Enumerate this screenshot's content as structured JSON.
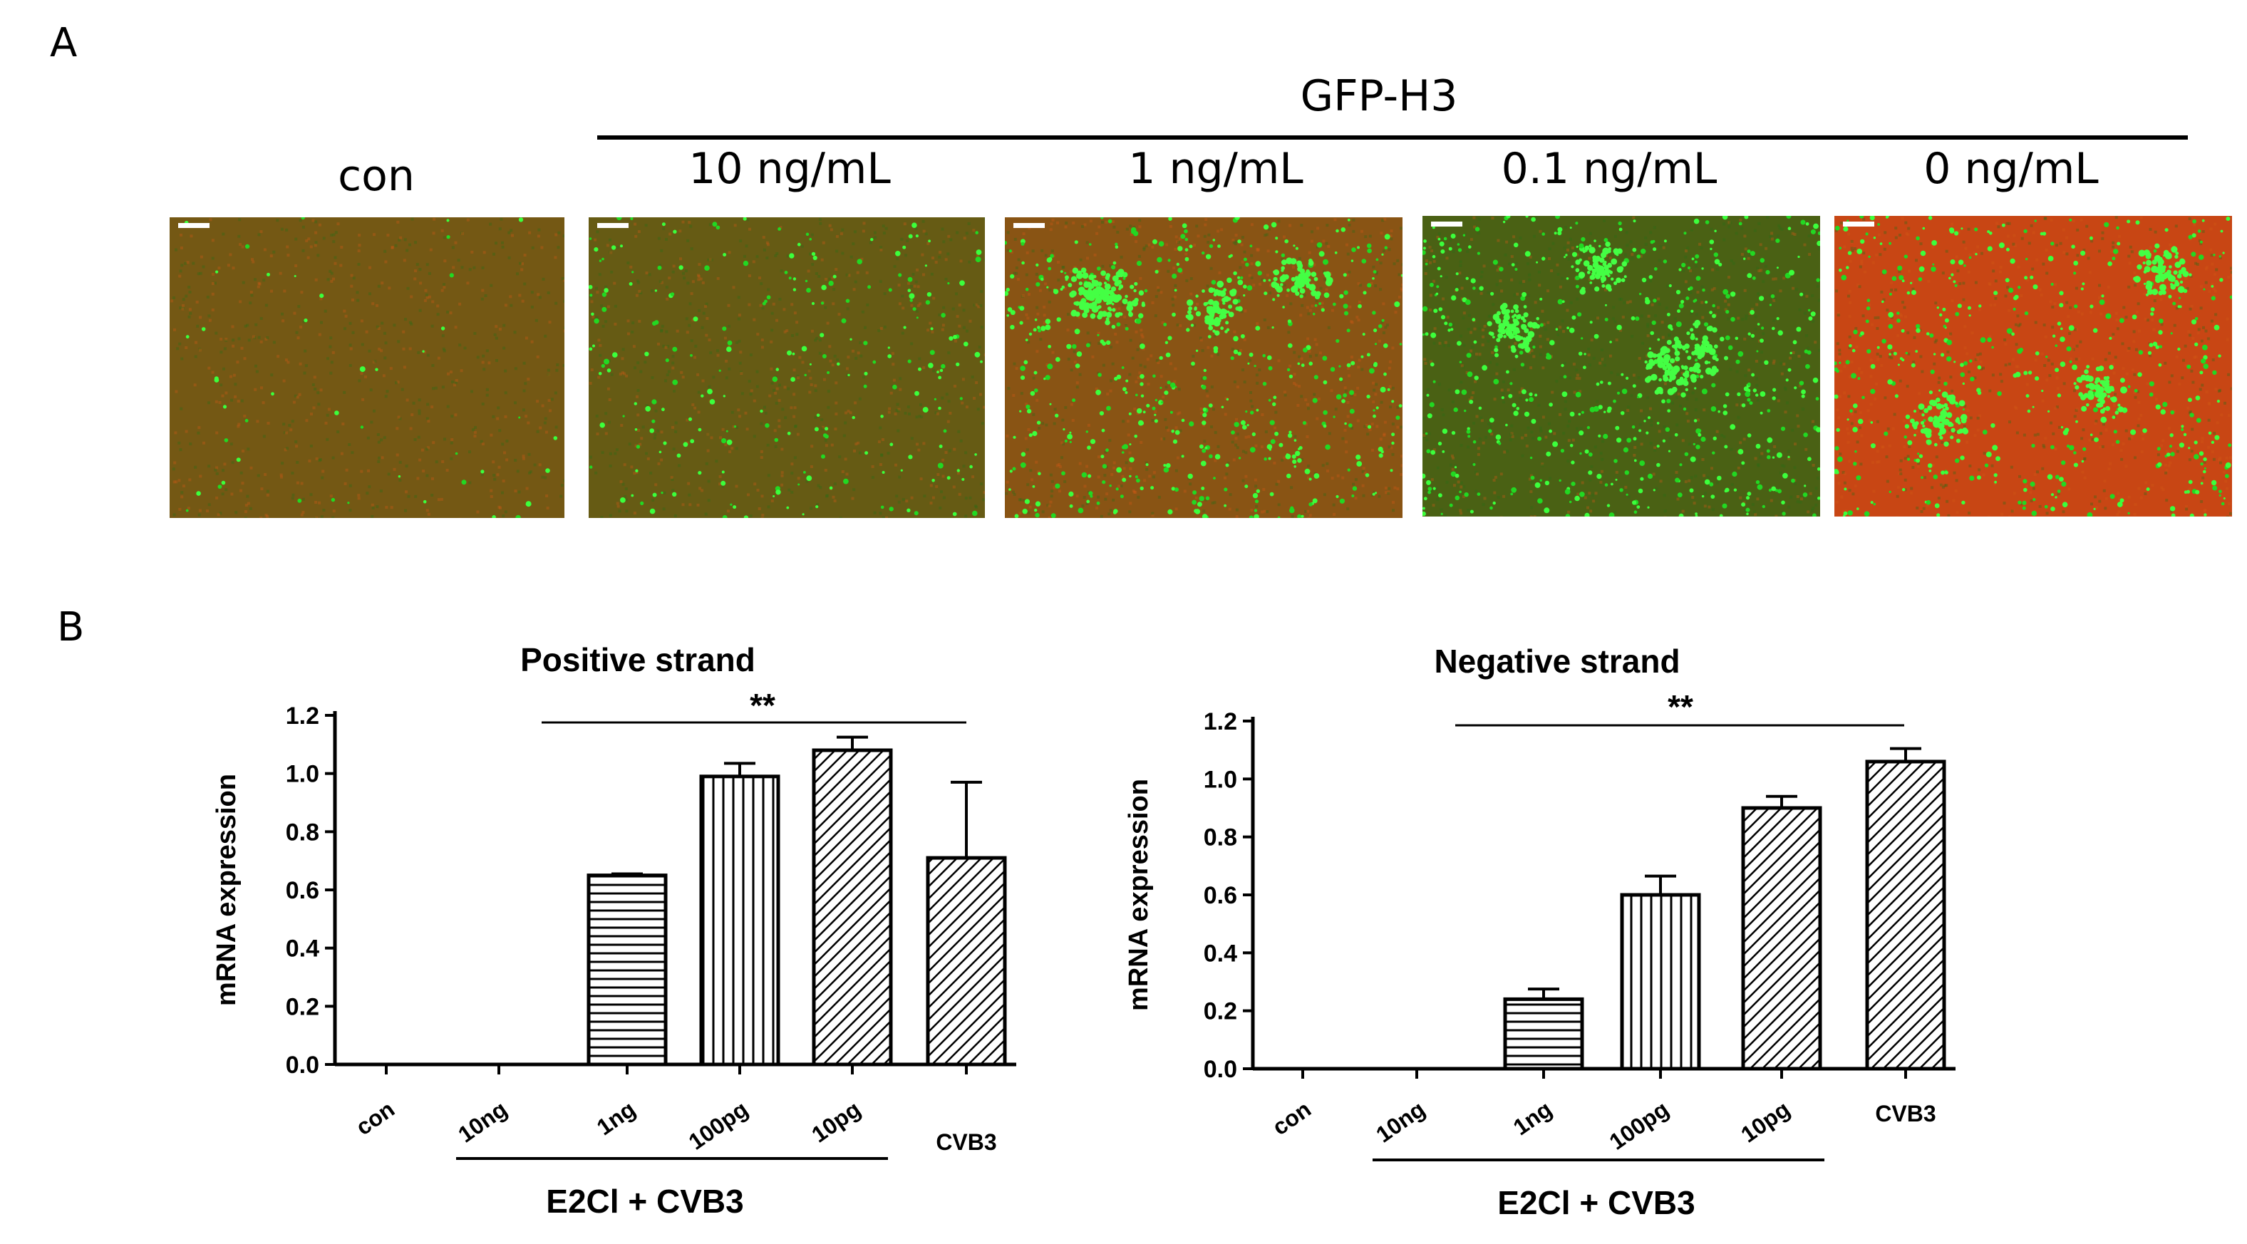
{
  "panel_a": {
    "letter": "A",
    "group_label": "GFP-H3",
    "images": [
      {
        "label": "con",
        "green_density": 0.05,
        "red_tint": 0.4,
        "clusters": 0
      },
      {
        "label": "10 ng/mL",
        "green_density": 0.25,
        "red_tint": 0.3,
        "clusters": 0
      },
      {
        "label": "1 ng/mL",
        "green_density": 0.55,
        "red_tint": 0.55,
        "clusters": 4
      },
      {
        "label": "0.1 ng/mL",
        "green_density": 0.6,
        "red_tint": 0.1,
        "clusters": 4
      },
      {
        "label": "0 ng/mL",
        "green_density": 0.5,
        "red_tint": 1.0,
        "clusters": 3
      }
    ]
  },
  "panel_b": {
    "letter": "B"
  },
  "chart_data": [
    {
      "type": "bar",
      "title": "Positive strand",
      "ylabel": "mRNA expression",
      "ylim": [
        0,
        1.2
      ],
      "yticks": [
        "0.0",
        "0.2",
        "0.4",
        "0.6",
        "0.8",
        "1.0",
        "1.2"
      ],
      "categories": [
        "con",
        "10ng",
        "1ng",
        "100pg",
        "10pg",
        "CVB3"
      ],
      "values": [
        0.0,
        0.0,
        0.65,
        0.99,
        1.08,
        0.71
      ],
      "errors": [
        0,
        0,
        0.005,
        0.045,
        0.045,
        0.26
      ],
      "patterns": [
        "none",
        "none",
        "horizontal",
        "vertical",
        "diagonal",
        "diagonal"
      ],
      "significance": "**",
      "group_label": "E2Cl + CVB3"
    },
    {
      "type": "bar",
      "title": "Negative strand",
      "ylabel": "mRNA expression",
      "ylim": [
        0,
        1.2
      ],
      "yticks": [
        "0.0",
        "0.2",
        "0.4",
        "0.6",
        "0.8",
        "1.0",
        "1.2"
      ],
      "categories": [
        "con",
        "10ng",
        "1ng",
        "100pg",
        "10pg",
        "CVB3"
      ],
      "values": [
        0.0,
        0.0,
        0.24,
        0.6,
        0.9,
        1.06
      ],
      "errors": [
        0,
        0,
        0.035,
        0.065,
        0.04,
        0.045
      ],
      "patterns": [
        "none",
        "none",
        "horizontal",
        "vertical",
        "diagonal",
        "diagonal"
      ],
      "significance": "**",
      "group_label": "E2Cl + CVB3"
    }
  ]
}
